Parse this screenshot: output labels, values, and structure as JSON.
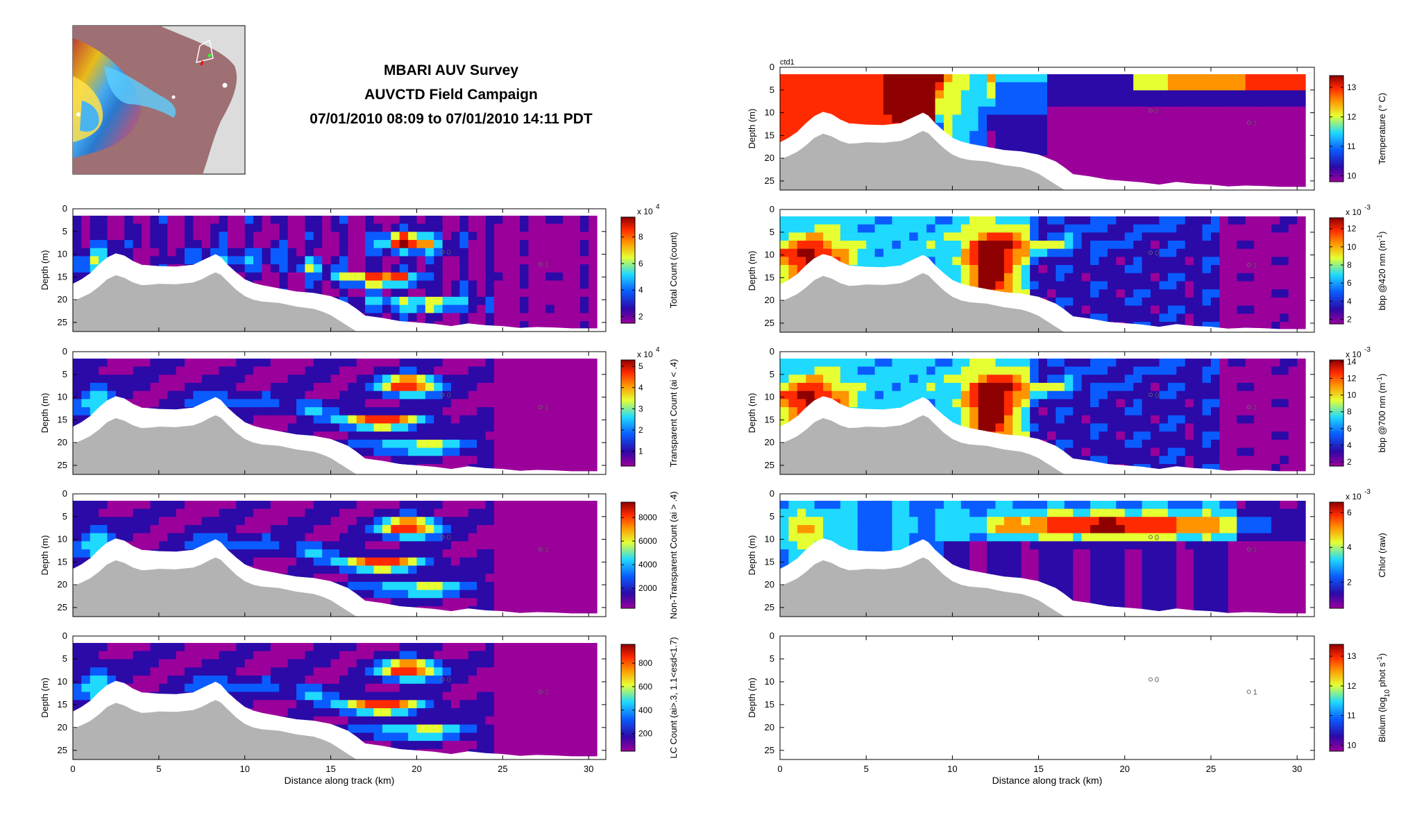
{
  "header": {
    "title_line1": "MBARI AUV Survey",
    "title_line2": "AUVCTD Field Campaign",
    "title_line3": "07/01/2010 08:09 to 07/01/2010 14:11 PDT"
  },
  "colors": {
    "bathymetry_fill": "#b3b3b3",
    "colormap": [
      "#9b009b",
      "#2b0aa8",
      "#0a5cff",
      "#1fd9ff",
      "#e6ff33",
      "#ff9400",
      "#ff2a00",
      "#8f0000"
    ]
  },
  "chart_data": [
    {
      "id": "total_count",
      "type": "heatmap",
      "panel": "left-1",
      "xlabel": "",
      "ylabel": "Depth (m)",
      "xlim": [
        0,
        31
      ],
      "ylim": [
        27,
        0
      ],
      "xticks": [
        "0",
        "5",
        "10",
        "15",
        "20",
        "25",
        "30"
      ],
      "yticks": [
        "0",
        "5",
        "10",
        "15",
        "20",
        "25"
      ],
      "colorbar": {
        "label": "Total Count (count)",
        "exponent": "x 10",
        "exponent_power": "4",
        "ticks": [
          "2",
          "4",
          "6",
          "8"
        ],
        "range": [
          1.5,
          9.5
        ]
      },
      "markers": [
        {
          "label": "0",
          "x": 21.5,
          "y": 9.5
        },
        {
          "label": "1",
          "x": 27.2,
          "y": 12.2
        }
      ]
    },
    {
      "id": "transparent_count",
      "type": "heatmap",
      "panel": "left-2",
      "xlabel": "",
      "ylabel": "Depth (m)",
      "xlim": [
        0,
        31
      ],
      "ylim": [
        27,
        0
      ],
      "xticks": [
        "0",
        "5",
        "10",
        "15",
        "20",
        "25",
        "30"
      ],
      "yticks": [
        "0",
        "5",
        "10",
        "15",
        "20",
        "25"
      ],
      "colorbar": {
        "label": "Transparent Count (ai < .4)",
        "exponent": "x 10",
        "exponent_power": "4",
        "ticks": [
          "1",
          "2",
          "3",
          "4",
          "5"
        ],
        "range": [
          0.3,
          5.3
        ]
      },
      "markers": [
        {
          "label": "0",
          "x": 21.5,
          "y": 9.5
        },
        {
          "label": "1",
          "x": 27.2,
          "y": 12.2
        }
      ]
    },
    {
      "id": "nontransparent_count",
      "type": "heatmap",
      "panel": "left-3",
      "xlabel": "",
      "ylabel": "Depth (m)",
      "xlim": [
        0,
        31
      ],
      "ylim": [
        27,
        0
      ],
      "xticks": [
        "0",
        "5",
        "10",
        "15",
        "20",
        "25",
        "30"
      ],
      "yticks": [
        "0",
        "5",
        "10",
        "15",
        "20",
        "25"
      ],
      "colorbar": {
        "label": "Non-Transparent Count (ai > .4)",
        "exponent": "",
        "exponent_power": "",
        "ticks": [
          "2000",
          "4000",
          "6000",
          "8000"
        ],
        "range": [
          300,
          9300
        ]
      },
      "markers": [
        {
          "label": "0",
          "x": 21.5,
          "y": 9.5
        },
        {
          "label": "1",
          "x": 27.2,
          "y": 12.2
        }
      ]
    },
    {
      "id": "lc_count",
      "type": "heatmap",
      "panel": "left-4",
      "xlabel": "Distance along track (km)",
      "ylabel": "Depth (m)",
      "xlim": [
        0,
        31
      ],
      "ylim": [
        27,
        0
      ],
      "xticks": [
        "0",
        "5",
        "10",
        "15",
        "20",
        "25",
        "30"
      ],
      "yticks": [
        "0",
        "5",
        "10",
        "15",
        "20",
        "25"
      ],
      "colorbar": {
        "label": "LC Count (ai>.3, 1.1<esd<1.7)",
        "exponent": "",
        "exponent_power": "",
        "ticks": [
          "200",
          "400",
          "600",
          "800"
        ],
        "range": [
          50,
          960
        ]
      },
      "markers": [
        {
          "label": "0",
          "x": 21.5,
          "y": 9.5
        },
        {
          "label": "1",
          "x": 27.2,
          "y": 12.2
        }
      ]
    },
    {
      "id": "temperature",
      "type": "heatmap",
      "panel": "right-1",
      "corner_label": "ctd1",
      "xlabel": "",
      "ylabel": "Depth (m)",
      "xlim": [
        0,
        31
      ],
      "ylim": [
        27,
        0
      ],
      "xticks": [
        "0",
        "5",
        "10",
        "15",
        "20",
        "25",
        "30"
      ],
      "yticks": [
        "0",
        "5",
        "10",
        "15",
        "20",
        "25"
      ],
      "colorbar": {
        "label": "Temperature (° C)",
        "exponent": "",
        "exponent_power": "",
        "ticks": [
          "10",
          "11",
          "12",
          "13"
        ],
        "range": [
          9.8,
          13.4
        ]
      },
      "markers": [
        {
          "label": "0",
          "x": 21.5,
          "y": 9.5
        },
        {
          "label": "1",
          "x": 27.2,
          "y": 12.2
        }
      ]
    },
    {
      "id": "bbp420",
      "type": "heatmap",
      "panel": "right-2",
      "xlabel": "",
      "ylabel": "Depth (m)",
      "xlim": [
        0,
        31
      ],
      "ylim": [
        27,
        0
      ],
      "xticks": [
        "0",
        "5",
        "10",
        "15",
        "20",
        "25",
        "30"
      ],
      "yticks": [
        "0",
        "5",
        "10",
        "15",
        "20",
        "25"
      ],
      "colorbar": {
        "label": "bbp @420 nm (m",
        "label_sup": "-1",
        "label_end": ")",
        "exponent": "x 10",
        "exponent_power": "-3",
        "ticks": [
          "2",
          "4",
          "6",
          "8",
          "10",
          "12"
        ],
        "range": [
          1.5,
          13.2
        ]
      },
      "markers": [
        {
          "label": "0",
          "x": 21.5,
          "y": 9.5
        },
        {
          "label": "1",
          "x": 27.2,
          "y": 12.2
        }
      ]
    },
    {
      "id": "bbp700",
      "type": "heatmap",
      "panel": "right-3",
      "xlabel": "",
      "ylabel": "Depth (m)",
      "xlim": [
        0,
        31
      ],
      "ylim": [
        27,
        0
      ],
      "xticks": [
        "0",
        "5",
        "10",
        "15",
        "20",
        "25",
        "30"
      ],
      "yticks": [
        "0",
        "5",
        "10",
        "15",
        "20",
        "25"
      ],
      "colorbar": {
        "label": "bbp @700 nm (m",
        "label_sup": "-1",
        "label_end": ")",
        "exponent": "x 10",
        "exponent_power": "-3",
        "ticks": [
          "2",
          "4",
          "6",
          "8",
          "10",
          "12",
          "14"
        ],
        "range": [
          1.5,
          14.2
        ]
      },
      "markers": [
        {
          "label": "0",
          "x": 21.5,
          "y": 9.5
        },
        {
          "label": "1",
          "x": 27.2,
          "y": 12.2
        }
      ]
    },
    {
      "id": "chlor",
      "type": "heatmap",
      "panel": "right-4",
      "xlabel": "",
      "ylabel": "Depth (m)",
      "xlim": [
        0,
        31
      ],
      "ylim": [
        27,
        0
      ],
      "xticks": [
        "0",
        "5",
        "10",
        "15",
        "20",
        "25",
        "30"
      ],
      "yticks": [
        "0",
        "5",
        "10",
        "15",
        "20",
        "25"
      ],
      "colorbar": {
        "label": "Chlor (raw)",
        "exponent": "x 10",
        "exponent_power": "-3",
        "ticks": [
          "2",
          "4",
          "6"
        ],
        "range": [
          0.5,
          6.6
        ]
      },
      "markers": [
        {
          "label": "0",
          "x": 21.5,
          "y": 9.5
        },
        {
          "label": "1",
          "x": 27.2,
          "y": 12.2
        }
      ]
    },
    {
      "id": "biolum",
      "type": "heatmap",
      "panel": "right-5",
      "empty": true,
      "xlabel": "Distance along track (km)",
      "ylabel": "Depth (m)",
      "xlim": [
        0,
        31
      ],
      "ylim": [
        27,
        0
      ],
      "xticks": [
        "0",
        "5",
        "10",
        "15",
        "20",
        "25",
        "30"
      ],
      "yticks": [
        "0",
        "5",
        "10",
        "15",
        "20",
        "25"
      ],
      "colorbar": {
        "label": "Biolum (log",
        "label_sub": "10",
        "label_mid": " phot s",
        "label_sup": "-1",
        "label_end": ")",
        "exponent": "",
        "exponent_power": "",
        "ticks": [
          "10",
          "11",
          "12",
          "13"
        ],
        "range": [
          9.8,
          13.4
        ]
      },
      "markers": [
        {
          "label": "0",
          "x": 21.5,
          "y": 9.5
        },
        {
          "label": "1",
          "x": 27.2,
          "y": 12.2
        }
      ]
    }
  ]
}
